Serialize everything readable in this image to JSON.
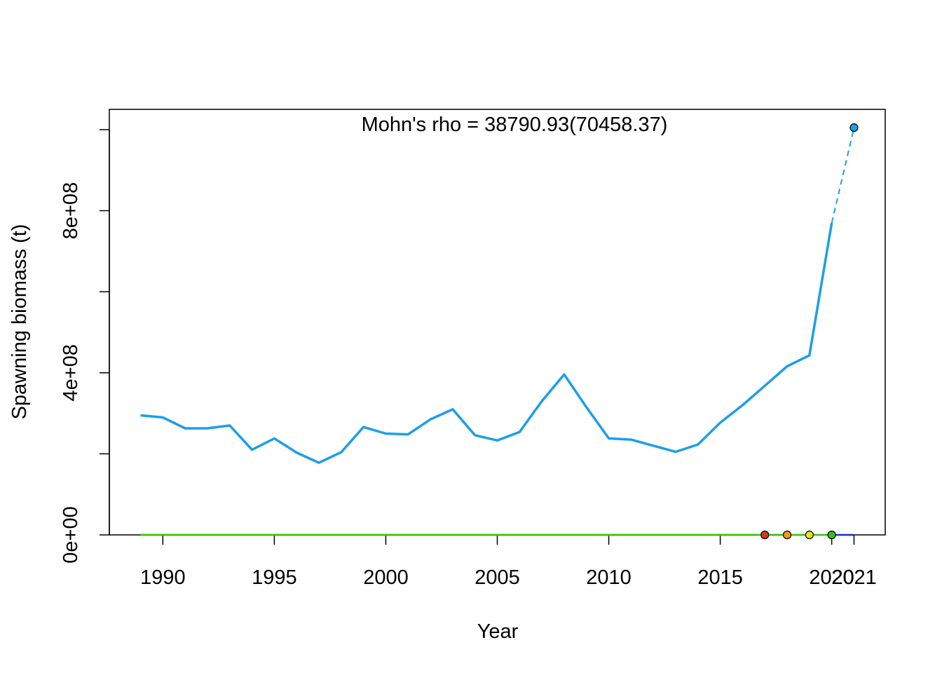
{
  "chart_data": {
    "type": "line",
    "title": "Mohn's rho = 38790.93(70458.37)",
    "xlabel": "Year",
    "ylabel": "Spawning biomass (t)",
    "xlim": [
      1987.6,
      2022.4
    ],
    "ylim": [
      0,
      1050000000
    ],
    "x_ticks": [
      1990,
      1995,
      2000,
      2005,
      2010,
      2015,
      2020,
      2021
    ],
    "x_tick_labels": [
      "1990",
      "1995",
      "2000",
      "2005",
      "2010",
      "2015",
      "2020",
      "2021"
    ],
    "y_ticks": [
      0,
      200000000,
      400000000,
      600000000,
      800000000,
      1000000000
    ],
    "y_tick_labels": [
      "0e+00",
      "",
      "4e+08",
      "",
      "8e+08",
      ""
    ],
    "grid": false,
    "series": [
      {
        "color": "#1C9EEA",
        "x": [
          1989,
          1990,
          1991,
          1992,
          1993,
          1994,
          1995,
          1996,
          1997,
          1998,
          1999,
          2000,
          2001,
          2002,
          2003,
          2004,
          2005,
          2006,
          2007,
          2008,
          2009,
          2010,
          2011,
          2012,
          2013,
          2014,
          2015,
          2016,
          2017,
          2018,
          2019,
          2020
        ],
        "values": [
          295000000,
          290000000,
          263000000,
          263000000,
          270000000,
          210000000,
          238000000,
          203000000,
          178000000,
          204000000,
          266000000,
          250000000,
          248000000,
          285000000,
          310000000,
          246000000,
          233000000,
          254000000,
          330000000,
          396000000,
          315000000,
          238000000,
          235000000,
          220000000,
          205000000,
          223000000,
          277000000,
          320000000,
          368000000,
          416000000,
          443000000,
          770000000
        ],
        "projection": {
          "x": [
            2020,
            2021
          ],
          "values": [
            770000000,
            1005000000
          ]
        }
      },
      {
        "color": "#D43A1E",
        "x": [
          1989,
          2017
        ],
        "values": [
          0,
          0
        ],
        "end_point": {
          "x": 2017,
          "value": 0
        }
      },
      {
        "color": "#F29A1B",
        "x": [
          1989,
          2018
        ],
        "values": [
          0,
          0
        ],
        "end_point": {
          "x": 2018,
          "value": 0
        }
      },
      {
        "color": "#E8E21C",
        "x": [
          1989,
          2019
        ],
        "values": [
          0,
          0
        ],
        "end_point": {
          "x": 2019,
          "value": 0
        }
      },
      {
        "color": "#33C21A",
        "x": [
          1989,
          2020
        ],
        "values": [
          0,
          0
        ],
        "end_point": {
          "x": 2020,
          "value": 0
        }
      },
      {
        "color": "#1C2AD4",
        "x": [
          2020,
          2021
        ],
        "values": [
          0,
          0
        ]
      }
    ],
    "final_point": {
      "x": 2021,
      "value": 1005000000,
      "color": "#1C9EEA"
    }
  }
}
